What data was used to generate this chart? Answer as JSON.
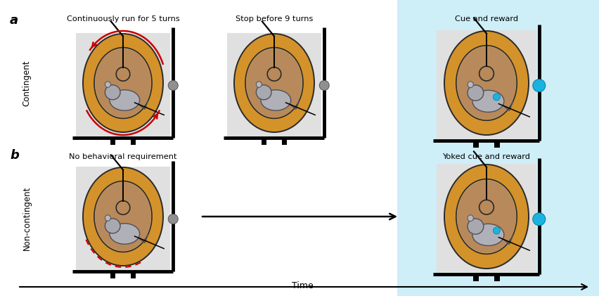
{
  "fig_width": 8.52,
  "fig_height": 4.21,
  "dpi": 100,
  "bg_color": "#ffffff",
  "light_blue_bg": "#ceeef8",
  "wheel_outer_color": "#d4922a",
  "wheel_inner_color": "#c8a76a",
  "wheel_tread_color": "#b8895a",
  "label_a": "a",
  "label_b": "b",
  "text_contingent": "Contingent",
  "text_noncontingent": "Non-contingent",
  "text_run5": "Continuously run for 5 turns",
  "text_stop9": "Stop before 9 turns",
  "text_cue_reward": "Cue and reward",
  "text_no_behav": "No behavioral requirement",
  "text_yoked": "Yoked cue and reward",
  "text_time": "Time",
  "cyan_dot_color": "#1ab3e0",
  "gray_dot_color": "#888888",
  "red_color": "#cc0000"
}
